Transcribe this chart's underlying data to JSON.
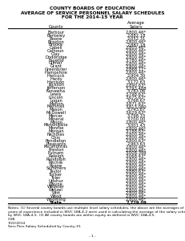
{
  "title_line1": "COUNTY BOARDS OF EDUCATION",
  "title_line2": "AVERAGE OF SERVICE PERSONNEL SALARY SCHEDULES",
  "title_line3": "FOR THE 2014-15 YEAR",
  "col_header_county": "County",
  "col_header_avg": "Average",
  "col_header_salary": "Salary",
  "counties": [
    "Barbour",
    "Berkeley",
    "Boone",
    "Braxton",
    "Brooke",
    "Cabell",
    "Calhoun",
    "Clay",
    "Doddridge",
    "Fayette",
    "Gilmer",
    "Grant",
    "Greenbrier",
    "Hampshire",
    "Hancock",
    "Hardy",
    "Harrison",
    "Jackson",
    "Jefferson",
    "Kanawha",
    "Lewis",
    "Lincoln",
    "Logan",
    "Marion",
    "Marshall",
    "Mason",
    "McDowell",
    "Mercer",
    "Mineral",
    "Mingo",
    "Monongalia",
    "Monroe",
    "Morgan",
    "Nicholas",
    "Ohio",
    "Pendleton",
    "Pleasants",
    "Pocahontas",
    "Preston",
    "Putnam",
    "Raleigh",
    "Randolph",
    "Ritchie",
    "Roane",
    "Summers",
    "Taylor",
    "Tucker",
    "Tyler",
    "Upshur",
    "Wayne",
    "Webster",
    "Wetzel",
    "Wirt",
    "Wood",
    "Wyoming",
    "State"
  ],
  "salaries": [
    "2,800.46*",
    "2,882.18",
    "2,052.31",
    "2,800.46*",
    "2,887.18",
    "2,803.46*",
    "2,800.46*",
    "2,800.46*",
    "2,800.46*",
    "3,780.46*",
    "2,800.46*",
    "2,800.46*",
    "2,868.11*",
    "2,800.46*",
    "2,904.30",
    "2,800.46*",
    "3,172.63",
    "2,890.63*",
    "3,793.488",
    "3,783.06",
    "3,798.63*",
    "3,675.63*",
    "3,768.67",
    "3,871.63*",
    "3,813.080",
    "3,743.67",
    "3,629.63*",
    "3,798.33",
    "3,700.00",
    "2,800.46*",
    "3,001.43",
    "2,800.46*",
    "3,788.83*",
    "2,800.46*",
    "2,800.46*",
    "2,800.63*",
    "2,963.63",
    "2,800.46*",
    "2,800.46*",
    "3,008.398",
    "3,068.43*",
    "2,800.46*",
    "2,800.46*",
    "2,800.46*",
    "2,800.46*",
    "2,880.63*",
    "2,800.46*",
    "2,800.46*",
    "2,800.46*",
    "2,800.46*",
    "2,800.46*",
    "2,800.46*",
    "2,800.46*",
    "2,800.46*",
    "2,800.46*",
    "2,729.09"
  ],
  "notes_line1": "Notes: (1) Several county boards use multiple level salary schedules; the above are the averages of level one only. (2) All",
  "notes_line2": "years of experience included in WVC 18A-4-2 were used in calculating the average of the salary schedules, as prescribed",
  "notes_line3": "by WVC 18A-4-5. (3) All county boards are within equity as defined in WVC 18A-4-5.",
  "footer_line1": "CGB",
  "footer_line2": "7/22/2014",
  "footer_line3": "Serv Pers Salary Scheduled by County-15",
  "page_num": "- 1 -",
  "bg_color": "#ffffff",
  "text_color": "#000000",
  "title_fontsize": 4.2,
  "table_fontsize": 3.8,
  "notes_fontsize": 3.2,
  "footer_fontsize": 3.2
}
